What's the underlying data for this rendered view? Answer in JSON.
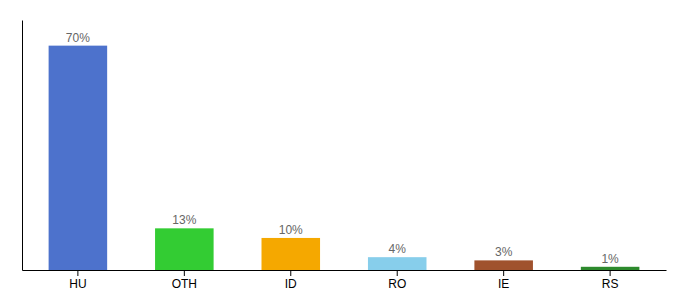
{
  "chart_data": {
    "type": "bar",
    "categories": [
      "HU",
      "OTH",
      "ID",
      "RO",
      "IE",
      "RS"
    ],
    "values": [
      70,
      13,
      10,
      4,
      3,
      1
    ],
    "value_labels": [
      "70%",
      "13%",
      "10%",
      "4%",
      "3%",
      "1%"
    ],
    "colors": [
      "#4d72cc",
      "#33cc33",
      "#f5a800",
      "#87ceeb",
      "#a0522d",
      "#2d8a2d"
    ],
    "ylim": [
      0,
      78
    ],
    "data_labels": true,
    "tick_labels": "x",
    "grid": false
  }
}
